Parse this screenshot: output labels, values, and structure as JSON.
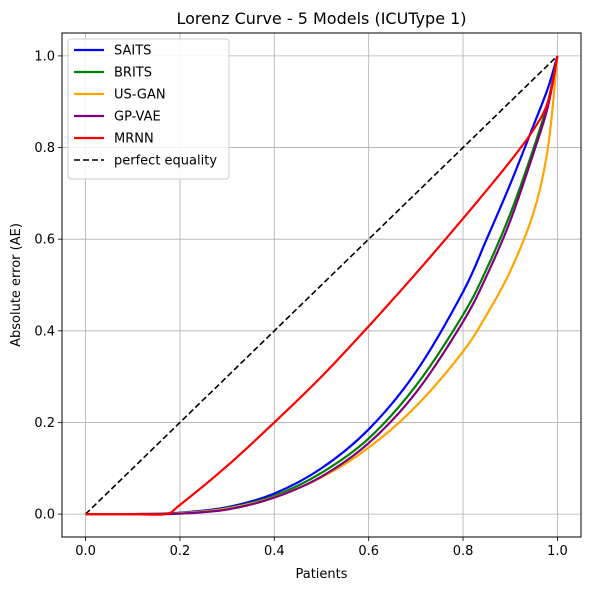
{
  "chart_data": {
    "type": "line",
    "title": "Lorenz Curve - 5 Models (ICUType 1)",
    "xlabel": "Patients",
    "ylabel": "Absolute error (AE)",
    "xlim": [
      -0.05,
      1.05
    ],
    "ylim": [
      -0.05,
      1.05
    ],
    "xticks": [
      "0.0",
      "0.2",
      "0.4",
      "0.6",
      "0.8",
      "1.0"
    ],
    "yticks": [
      "0.0",
      "0.2",
      "0.4",
      "0.6",
      "0.8",
      "1.0"
    ],
    "grid": true,
    "legend_position": "top-left",
    "series": [
      {
        "name": "SAITS",
        "color": "#0000ff",
        "style": "solid",
        "x": [
          0,
          0.1,
          0.2,
          0.3,
          0.4,
          0.5,
          0.6,
          0.7,
          0.8,
          0.85,
          0.9,
          0.95,
          0.98,
          1.0
        ],
        "y": [
          0,
          0,
          0.003,
          0.015,
          0.045,
          0.1,
          0.185,
          0.31,
          0.485,
          0.6,
          0.72,
          0.85,
          0.93,
          1.0
        ]
      },
      {
        "name": "BRITS",
        "color": "#008000",
        "style": "solid",
        "x": [
          0,
          0.1,
          0.2,
          0.3,
          0.4,
          0.5,
          0.6,
          0.7,
          0.8,
          0.85,
          0.9,
          0.95,
          0.98,
          1.0
        ],
        "y": [
          0,
          0,
          0.002,
          0.013,
          0.04,
          0.09,
          0.165,
          0.28,
          0.435,
          0.535,
          0.655,
          0.8,
          0.9,
          1.0
        ]
      },
      {
        "name": "US-GAN",
        "color": "#ffa500",
        "style": "solid",
        "x": [
          0,
          0.1,
          0.2,
          0.3,
          0.4,
          0.5,
          0.6,
          0.7,
          0.8,
          0.85,
          0.9,
          0.95,
          0.98,
          1.0
        ],
        "y": [
          0,
          0,
          0.002,
          0.012,
          0.037,
          0.08,
          0.145,
          0.235,
          0.355,
          0.435,
          0.53,
          0.66,
          0.8,
          1.0
        ]
      },
      {
        "name": "GP-VAE",
        "color": "#800080",
        "style": "solid",
        "x": [
          0,
          0.1,
          0.2,
          0.3,
          0.4,
          0.5,
          0.6,
          0.7,
          0.8,
          0.85,
          0.9,
          0.95,
          0.98,
          1.0
        ],
        "y": [
          0,
          0,
          0.001,
          0.01,
          0.036,
          0.082,
          0.155,
          0.265,
          0.42,
          0.52,
          0.64,
          0.79,
          0.89,
          1.0
        ]
      },
      {
        "name": "MRNN",
        "color": "#ff0000",
        "style": "solid",
        "x": [
          0,
          0.1,
          0.17,
          0.2,
          0.3,
          0.4,
          0.5,
          0.6,
          0.7,
          0.8,
          0.9,
          0.95,
          0.98,
          1.0
        ],
        "y": [
          0,
          0,
          0.0,
          0.02,
          0.105,
          0.2,
          0.3,
          0.41,
          0.525,
          0.645,
          0.77,
          0.84,
          0.9,
          1.0
        ]
      },
      {
        "name": "perfect equality",
        "color": "#000000",
        "style": "dashed",
        "x": [
          0,
          1
        ],
        "y": [
          0,
          1
        ]
      }
    ]
  }
}
